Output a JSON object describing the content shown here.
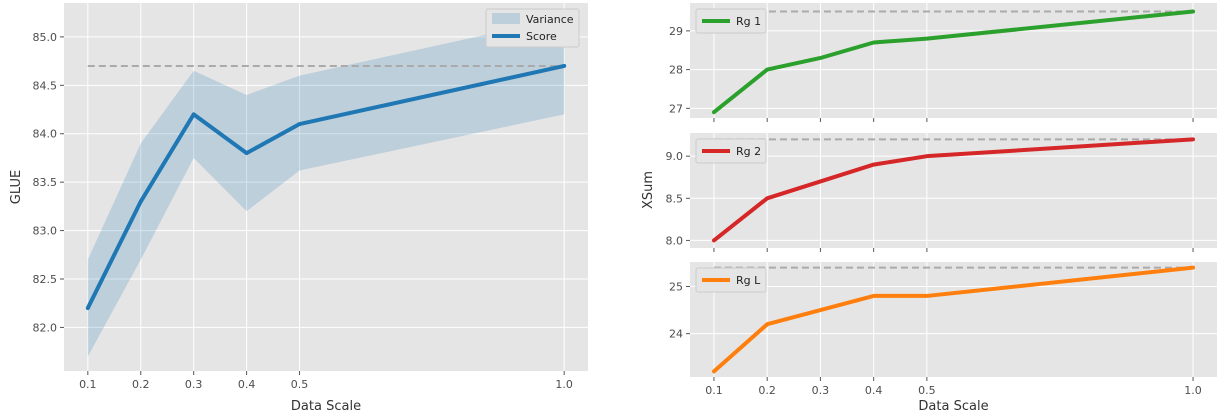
{
  "chart_data": [
    {
      "type": "line",
      "id": "glue",
      "xlabel": "Data Scale",
      "ylabel": "GLUE",
      "xlim": [
        0.055,
        1.045
      ],
      "ylim": [
        81.55,
        85.35
      ],
      "xticks": [
        {
          "value": 0.1,
          "label": "0.1"
        },
        {
          "value": 0.2,
          "label": "0.2"
        },
        {
          "value": 0.3,
          "label": "0.3"
        },
        {
          "value": 0.4,
          "label": "0.4"
        },
        {
          "value": 0.5,
          "label": "0.5"
        },
        {
          "value": 1.0,
          "label": "1.0"
        }
      ],
      "yticks": [
        {
          "value": 82.0,
          "label": "82.0"
        },
        {
          "value": 82.5,
          "label": "82.5"
        },
        {
          "value": 83.0,
          "label": "83.0"
        },
        {
          "value": 83.5,
          "label": "83.5"
        },
        {
          "value": 84.0,
          "label": "84.0"
        },
        {
          "value": 84.5,
          "label": "84.5"
        },
        {
          "value": 85.0,
          "label": "85.0"
        }
      ],
      "x": [
        0.1,
        0.2,
        0.3,
        0.4,
        0.5,
        1.0
      ],
      "series": [
        {
          "name": "Score",
          "values": [
            82.2,
            83.3,
            84.2,
            83.8,
            84.1,
            84.7
          ],
          "color": "#1f77b4"
        }
      ],
      "band": {
        "name": "Variance",
        "lower": [
          81.7,
          82.7,
          83.75,
          83.2,
          83.62,
          84.2
        ],
        "upper": [
          82.7,
          83.9,
          84.65,
          84.4,
          84.6,
          85.2
        ],
        "color": "#1f77b4"
      },
      "reference_line": 84.7,
      "grid": true,
      "legend": "top-right"
    },
    {
      "type": "line",
      "id": "xsum-rg1",
      "xlim": [
        0.055,
        1.045
      ],
      "ylim": [
        26.75,
        29.72
      ],
      "yticks": [
        {
          "value": 27,
          "label": "27"
        },
        {
          "value": 28,
          "label": "28"
        },
        {
          "value": 29,
          "label": "29"
        }
      ],
      "x": [
        0.1,
        0.2,
        0.3,
        0.4,
        0.5,
        1.0
      ],
      "series": [
        {
          "name": "Rg 1",
          "values": [
            26.9,
            28.0,
            28.3,
            28.7,
            28.8,
            29.5
          ],
          "color": "#2ca02c"
        }
      ],
      "reference_line": 29.5,
      "grid": true,
      "legend": "top-left"
    },
    {
      "type": "line",
      "id": "xsum-rg2",
      "xlim": [
        0.055,
        1.045
      ],
      "ylim": [
        7.91,
        9.275
      ],
      "yticks": [
        {
          "value": 8.0,
          "label": "8.0"
        },
        {
          "value": 8.5,
          "label": "8.5"
        },
        {
          "value": 9.0,
          "label": "9.0"
        }
      ],
      "x": [
        0.1,
        0.2,
        0.3,
        0.4,
        0.5,
        1.0
      ],
      "series": [
        {
          "name": "Rg 2",
          "values": [
            8.0,
            8.5,
            8.7,
            8.9,
            9.0,
            9.2
          ],
          "color": "#d62728"
        }
      ],
      "reference_line": 9.2,
      "grid": true,
      "legend": "top-left"
    },
    {
      "type": "line",
      "id": "xsum-rgl",
      "xlim": [
        0.055,
        1.045
      ],
      "ylim": [
        23.08,
        25.52
      ],
      "yticks": [
        {
          "value": 24,
          "label": "24"
        },
        {
          "value": 25,
          "label": "25"
        }
      ],
      "x": [
        0.1,
        0.2,
        0.3,
        0.4,
        0.5,
        1.0
      ],
      "series": [
        {
          "name": "Rg L",
          "values": [
            23.2,
            24.2,
            24.5,
            24.8,
            24.8,
            25.4
          ],
          "color": "#ff7f0e"
        }
      ],
      "reference_line": 25.4,
      "grid": true,
      "legend": "top-left"
    }
  ],
  "right_shared": {
    "ylabel": "XSum",
    "xlabel": "Data Scale",
    "xticks": [
      {
        "value": 0.1,
        "label": "0.1"
      },
      {
        "value": 0.2,
        "label": "0.2"
      },
      {
        "value": 0.3,
        "label": "0.3"
      },
      {
        "value": 0.4,
        "label": "0.4"
      },
      {
        "value": 0.5,
        "label": "0.5"
      },
      {
        "value": 1.0,
        "label": "1.0"
      }
    ]
  },
  "colors": {
    "panel_background": "#e5e5e5",
    "grid": "#ffffff",
    "reference_line": "#aaaaaa",
    "tick_text": "#4d4d4d",
    "label_text": "#333333"
  }
}
